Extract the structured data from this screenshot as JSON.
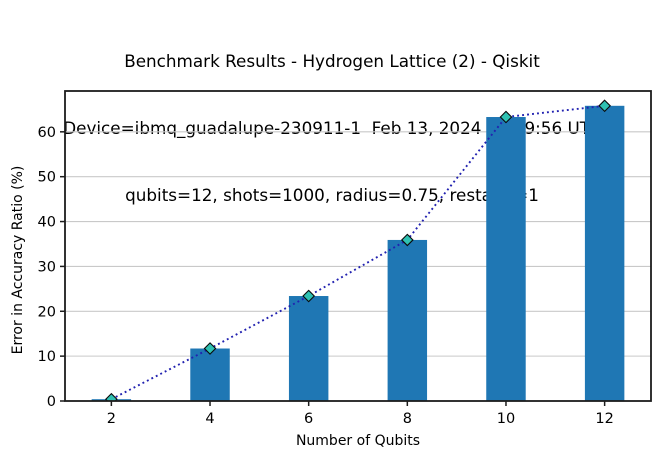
{
  "header": {
    "line1": "Benchmark Results - Hydrogen Lattice (2) - Qiskit",
    "line2": "Device=ibmq_guadalupe-230911-1  Feb 13, 2024 23:49:56 UTC",
    "line3": "qubits=12, shots=1000, radius=0.75, restarts=1"
  },
  "chart_data": {
    "type": "bar",
    "categories": [
      2,
      4,
      6,
      8,
      10,
      12
    ],
    "series": [
      {
        "name": "error-in-accuracy-ratio-bars",
        "type": "bar",
        "values": [
          0.4,
          11.7,
          23.4,
          35.9,
          63.3,
          65.8
        ]
      },
      {
        "name": "error-in-accuracy-ratio-line",
        "type": "line",
        "values": [
          0.4,
          11.7,
          23.4,
          35.9,
          63.3,
          65.8
        ],
        "marker": "diamond",
        "style": "dotted"
      }
    ],
    "xlabel": "Number of Qubits",
    "ylabel": "Error in Accuracy Ratio (%)",
    "xticks": [
      2,
      4,
      6,
      8,
      10,
      12
    ],
    "yticks": [
      0,
      10,
      20,
      30,
      40,
      50,
      60
    ],
    "xlim": [
      1.06,
      12.94
    ],
    "ylim": [
      0,
      69.1
    ],
    "bar_width_units": 0.8,
    "grid": "horizontal-only",
    "legend": "none",
    "colors": {
      "bar_fill": "#1f77b4",
      "line": "#2121b0",
      "marker_fill": "#2fc1b2",
      "marker_edge": "#0a0a0a",
      "grid": "#c9c9c9",
      "spine": "#1c1c1c",
      "tick": "#1c1c1c",
      "text": "#000000"
    }
  }
}
